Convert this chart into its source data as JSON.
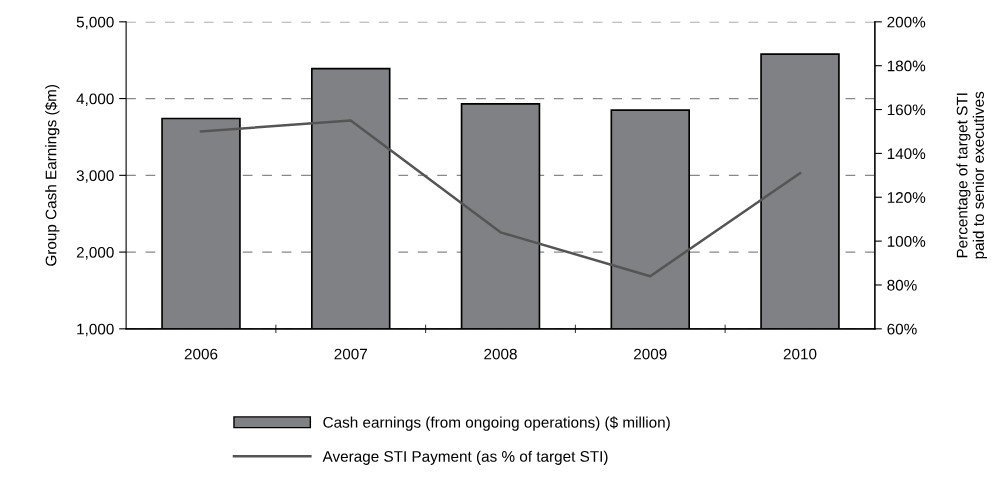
{
  "chart_data": {
    "type": "bar",
    "categories": [
      "2006",
      "2007",
      "2008",
      "2009",
      "2010"
    ],
    "ylabel": "Group Cash Earnings ($m)",
    "y2label": "Percentage of target STI\npaid to senior executives",
    "series": [
      {
        "name": "Cash earnings (from ongoing operations) ($ million)",
        "color": "#808184",
        "values": [
          3740,
          4390,
          3930,
          3850,
          4580
        ]
      },
      {
        "name": "Average STI Payment (as % of target STI)",
        "type": "line",
        "axis": "y2",
        "color": "#555555",
        "values": [
          150,
          155,
          104,
          84,
          131
        ]
      }
    ],
    "ylim": [
      1000,
      5000
    ],
    "yticks": [
      {
        "value": 1000,
        "label": "1,000"
      },
      {
        "value": 2000,
        "label": "2,000"
      },
      {
        "value": 3000,
        "label": "3,000"
      },
      {
        "value": 4000,
        "label": "4,000"
      },
      {
        "value": 5000,
        "label": "5,000"
      }
    ],
    "y2lim": [
      60,
      200
    ],
    "y2ticks": [
      {
        "value": 60,
        "label": "60%"
      },
      {
        "value": 80,
        "label": "80%"
      },
      {
        "value": 100,
        "label": "100%"
      },
      {
        "value": 120,
        "label": "120%"
      },
      {
        "value": 140,
        "label": "140%"
      },
      {
        "value": 160,
        "label": "160%"
      },
      {
        "value": 180,
        "label": "180%"
      },
      {
        "value": 200,
        "label": "200%"
      }
    ],
    "grid": "y",
    "legend": "bottom",
    "marker": "none",
    "line_style": "solid"
  }
}
